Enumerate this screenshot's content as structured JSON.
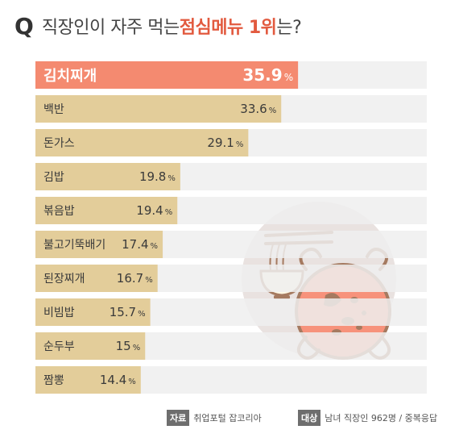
{
  "title": {
    "q_mark": "Q",
    "text_before": "직장인이 자주 먹는 ",
    "highlight": "점심메뉴 1위",
    "text_after": "는?"
  },
  "colors": {
    "top_bar": "#f48a70",
    "bar": "#e3cd9a",
    "track": "#eeeeee",
    "highlight": "#e25a3f",
    "illustration_circle": "#e9e2e0",
    "pot": "#f7927b"
  },
  "icons": [
    "noodle-bowl-icon",
    "chopsticks-icon",
    "stew-pot-icon"
  ],
  "chart_data": {
    "type": "bar",
    "orientation": "horizontal",
    "categories": [
      "김치찌개",
      "백반",
      "돈가스",
      "김밥",
      "볶음밥",
      "불고기뚝배기",
      "된장찌개",
      "비빔밥",
      "순두부",
      "짬뽕"
    ],
    "values": [
      35.9,
      33.6,
      29.1,
      19.8,
      19.4,
      17.4,
      16.7,
      15.7,
      15,
      14.4
    ],
    "value_labels": [
      "35.9",
      "33.6",
      "29.1",
      "19.8",
      "19.4",
      "17.4",
      "16.7",
      "15.7",
      "15",
      "14.4"
    ],
    "unit": "%",
    "xlim": [
      0,
      53.5
    ],
    "grid": false,
    "legend": "none"
  },
  "footer": {
    "source_tag": "자료",
    "source": "취업포털 잡코리아",
    "target_tag": "대상",
    "target": "남녀 직장인 962명 / 중복응답"
  }
}
